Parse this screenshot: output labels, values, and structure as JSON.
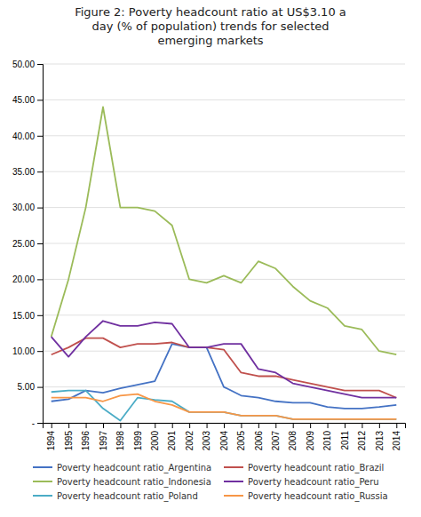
{
  "chart_data": {
    "type": "line",
    "title": "Figure 2: Poverty headcount ratio at US$3.10 a\nday (% of population) trends for selected\nemerging markets",
    "x": [
      1994,
      1995,
      1996,
      1997,
      1998,
      1999,
      2000,
      2001,
      2002,
      2003,
      2004,
      2005,
      2006,
      2007,
      2008,
      2009,
      2010,
      2011,
      2012,
      2013,
      2014
    ],
    "series": [
      {
        "name": "Poverty headcount ratio_Argentina",
        "color": "#4472C4",
        "values": [
          3.0,
          3.3,
          4.5,
          4.2,
          4.8,
          5.3,
          5.8,
          11.0,
          10.5,
          10.5,
          5.0,
          3.8,
          3.5,
          3.0,
          2.8,
          2.8,
          2.2,
          2.0,
          2.0,
          2.2,
          2.5
        ]
      },
      {
        "name": "Poverty headcount ratio_Brazil",
        "color": "#C0504D",
        "values": [
          9.5,
          10.5,
          11.8,
          11.8,
          10.5,
          11.0,
          11.0,
          11.2,
          10.5,
          10.5,
          10.2,
          7.0,
          6.5,
          6.5,
          6.0,
          5.5,
          5.0,
          4.5,
          4.5,
          4.5,
          3.5
        ]
      },
      {
        "name": "Poverty headcount ratio_Indonesia",
        "color": "#9BBB59",
        "values": [
          12.0,
          20.0,
          30.0,
          44.0,
          30.0,
          30.0,
          29.5,
          27.5,
          20.0,
          19.5,
          20.5,
          19.5,
          22.5,
          21.5,
          19.0,
          17.0,
          16.0,
          13.5,
          13.0,
          10.0,
          9.5
        ]
      },
      {
        "name": "Poverty headcount ratio_Peru",
        "color": "#7030A0",
        "values": [
          12.0,
          9.2,
          12.0,
          14.2,
          13.5,
          13.5,
          14.0,
          13.8,
          10.5,
          10.5,
          11.0,
          11.0,
          7.5,
          7.0,
          5.5,
          5.0,
          4.5,
          4.0,
          3.5,
          3.5,
          3.5
        ]
      },
      {
        "name": "Poverty headcount ratio_Poland",
        "color": "#4BACC6",
        "values": [
          4.3,
          4.5,
          4.5,
          2.0,
          0.3,
          3.5,
          3.2,
          3.0,
          1.5,
          1.5,
          1.5,
          1.0,
          1.0,
          1.0,
          0.5,
          0.5,
          0.5,
          0.5,
          0.5,
          0.5,
          0.5
        ]
      },
      {
        "name": "Poverty headcount ratio_Russia",
        "color": "#F79646",
        "values": [
          3.5,
          3.5,
          3.5,
          3.0,
          3.8,
          4.0,
          3.0,
          2.5,
          1.5,
          1.5,
          1.5,
          1.0,
          1.0,
          1.0,
          0.5,
          0.5,
          0.5,
          0.5,
          0.5,
          0.5,
          0.5
        ]
      }
    ],
    "xlim": [
      1993.5,
      2014.5
    ],
    "xticks": [
      1994,
      1995,
      1996,
      1997,
      1998,
      1999,
      2000,
      2001,
      2002,
      2003,
      2004,
      2005,
      2006,
      2007,
      2008,
      2009,
      2010,
      2011,
      2012,
      2013,
      2014
    ],
    "ylim": [
      0,
      50
    ],
    "yticks": [
      {
        "value": 0,
        "label": "-"
      },
      {
        "value": 5,
        "label": "5.00"
      },
      {
        "value": 10,
        "label": "10.00"
      },
      {
        "value": 15,
        "label": "15.00"
      },
      {
        "value": 20,
        "label": "20.00"
      },
      {
        "value": 25,
        "label": "25.00"
      },
      {
        "value": 30,
        "label": "30.00"
      },
      {
        "value": 35,
        "label": "35.00"
      },
      {
        "value": 40,
        "label": "40.00"
      },
      {
        "value": 45,
        "label": "45.00"
      },
      {
        "value": 50,
        "label": "50.00"
      }
    ],
    "grid": true,
    "legend": "bottom"
  }
}
